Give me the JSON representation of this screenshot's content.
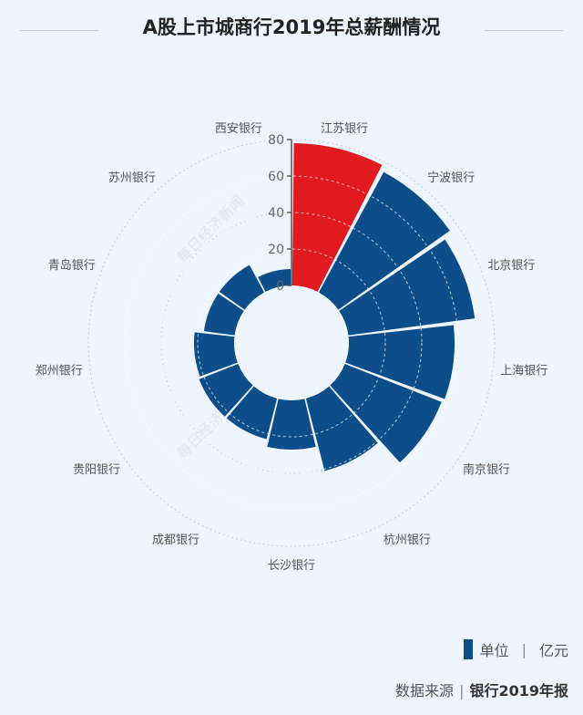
{
  "chart_data": {
    "type": "bar",
    "polar": true,
    "title": "A股上市城商行2019年总薪酬情况",
    "categories": [
      "江苏银行",
      "宁波银行",
      "北京银行",
      "上海银行",
      "南京银行",
      "杭州银行",
      "长沙银行",
      "成都银行",
      "贵阳银行",
      "郑州银行",
      "青岛银行",
      "苏州银行",
      "西安银行"
    ],
    "values": [
      78,
      75,
      70,
      58,
      57,
      41,
      27,
      23,
      23,
      22,
      17,
      17,
      9
    ],
    "radial_axis": {
      "range": [
        0,
        80
      ],
      "ticks": [
        "0",
        "20",
        "40",
        "60",
        "80"
      ]
    },
    "grid": true,
    "colors": {
      "highlight": "#e01a1f",
      "bar": "#0d4d8a"
    },
    "legend": {
      "placement": "bottom-right",
      "label": "单位",
      "unit": "亿元",
      "separator": "|"
    }
  },
  "source": {
    "label": "数据来源",
    "separator": "|",
    "value": "银行2019年报"
  },
  "watermark": "每日经济新闻"
}
